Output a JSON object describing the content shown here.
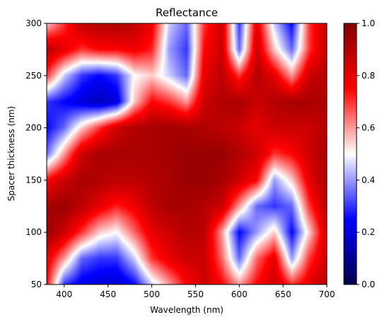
{
  "chart_data": {
    "type": "heatmap",
    "title": "Reflectance",
    "xlabel": "Wavelength (nm)",
    "ylabel": "Spacer thickness (nm)",
    "xlim": [
      380,
      700
    ],
    "ylim": [
      50,
      300
    ],
    "x_ticks": [
      400,
      450,
      500,
      550,
      600,
      650,
      700
    ],
    "y_ticks": [
      50,
      100,
      150,
      200,
      250,
      300
    ],
    "colorbar": {
      "colormap": "seismic",
      "range": [
        0.0,
        1.0
      ],
      "ticks": [
        "0.0",
        "0.2",
        "0.4",
        "0.6",
        "0.8",
        "1.0"
      ],
      "stops": [
        {
          "v": 0.0,
          "color": "#00004c"
        },
        {
          "v": 0.25,
          "color": "#0000ff"
        },
        {
          "v": 0.5,
          "color": "#ffffff"
        },
        {
          "v": 0.75,
          "color": "#ff0000"
        },
        {
          "v": 1.0,
          "color": "#800000"
        }
      ]
    },
    "grid": false,
    "legend": "none",
    "wavelengths": [
      380,
      400,
      420,
      440,
      460,
      480,
      500,
      520,
      540,
      560,
      580,
      600,
      620,
      640,
      660,
      680,
      700
    ],
    "thicknesses": [
      50,
      75,
      100,
      125,
      150,
      175,
      200,
      225,
      250,
      275,
      300
    ],
    "reflectance": [
      [
        0.75,
        0.3,
        0.22,
        0.2,
        0.18,
        0.25,
        0.45,
        0.6,
        0.75,
        0.85,
        0.75,
        0.6,
        0.75,
        0.85,
        0.7,
        0.8,
        0.9
      ],
      [
        0.8,
        0.6,
        0.35,
        0.3,
        0.3,
        0.45,
        0.7,
        0.8,
        0.85,
        0.85,
        0.65,
        0.35,
        0.65,
        0.8,
        0.4,
        0.7,
        0.85
      ],
      [
        0.95,
        0.85,
        0.7,
        0.55,
        0.5,
        0.65,
        0.8,
        0.85,
        0.9,
        0.88,
        0.6,
        0.25,
        0.4,
        0.55,
        0.25,
        0.55,
        0.85
      ],
      [
        0.92,
        0.95,
        0.88,
        0.8,
        0.72,
        0.78,
        0.88,
        0.92,
        0.92,
        0.9,
        0.85,
        0.6,
        0.35,
        0.3,
        0.35,
        0.7,
        0.9
      ],
      [
        0.75,
        0.85,
        0.92,
        0.9,
        0.88,
        0.88,
        0.9,
        0.92,
        0.95,
        0.95,
        0.92,
        0.85,
        0.75,
        0.4,
        0.55,
        0.8,
        0.92
      ],
      [
        0.35,
        0.6,
        0.85,
        0.92,
        0.92,
        0.92,
        0.92,
        0.93,
        0.95,
        0.95,
        0.95,
        0.9,
        0.85,
        0.7,
        0.75,
        0.85,
        0.92
      ],
      [
        0.25,
        0.35,
        0.55,
        0.7,
        0.85,
        0.9,
        0.92,
        0.93,
        0.92,
        0.9,
        0.88,
        0.85,
        0.8,
        0.85,
        0.85,
        0.85,
        0.9
      ],
      [
        0.3,
        0.25,
        0.2,
        0.15,
        0.2,
        0.55,
        0.75,
        0.7,
        0.6,
        0.85,
        0.9,
        0.92,
        0.85,
        0.9,
        0.92,
        0.92,
        0.9
      ],
      [
        0.7,
        0.45,
        0.3,
        0.25,
        0.3,
        0.5,
        0.55,
        0.45,
        0.35,
        0.8,
        0.88,
        0.7,
        0.9,
        0.8,
        0.6,
        0.85,
        0.9
      ],
      [
        0.88,
        0.8,
        0.7,
        0.75,
        0.75,
        0.78,
        0.72,
        0.4,
        0.3,
        0.75,
        0.85,
        0.35,
        0.85,
        0.55,
        0.35,
        0.7,
        0.88
      ],
      [
        0.55,
        0.7,
        0.88,
        0.9,
        0.92,
        0.88,
        0.78,
        0.45,
        0.35,
        0.7,
        0.85,
        0.3,
        0.8,
        0.45,
        0.25,
        0.7,
        0.88
      ]
    ]
  }
}
